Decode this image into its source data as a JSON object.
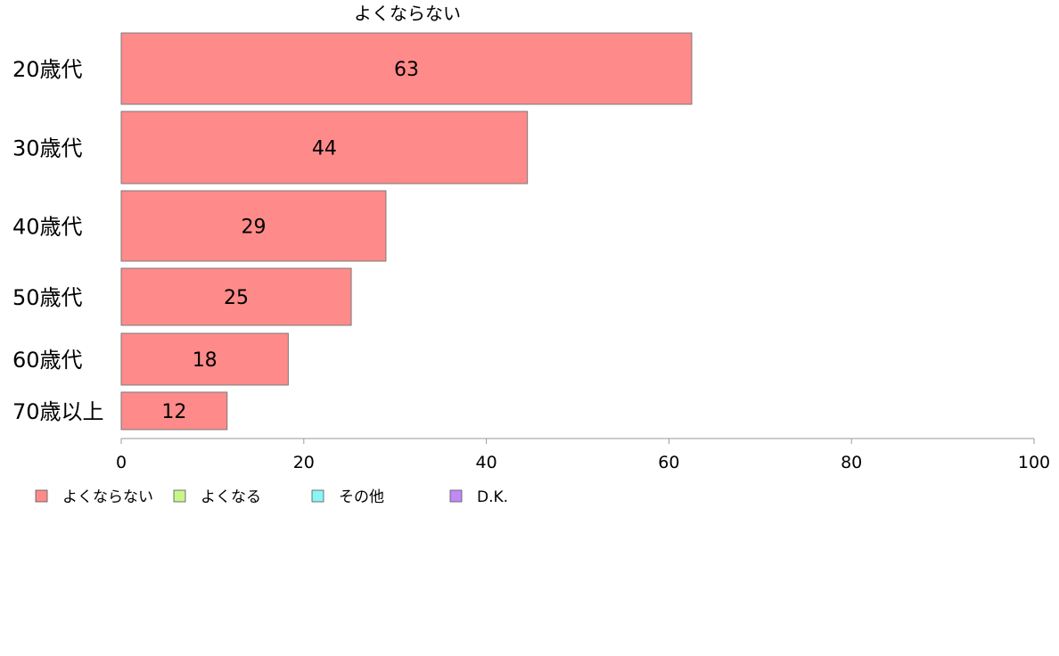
{
  "chart_data": {
    "type": "bar",
    "orientation": "horizontal",
    "title": "よくならない",
    "categories": [
      "20歳代",
      "30歳代",
      "40歳代",
      "50歳代",
      "60歳代",
      "70歳以上"
    ],
    "series": [
      {
        "name": "よくならない",
        "color": "#ff8a8a",
        "values": [
          63,
          44,
          29,
          25,
          18,
          12
        ],
        "display_values": [
          62.5,
          44.5,
          29,
          25.2,
          18.3,
          11.6
        ]
      }
    ],
    "xlim": [
      0,
      100
    ],
    "x_ticks": [
      0,
      20,
      40,
      60,
      80,
      100
    ],
    "grid": false,
    "legend": {
      "position": "bottom-left",
      "entries": [
        {
          "name": "よくならない",
          "color": "#ff8a8a"
        },
        {
          "name": "よくなる",
          "color": "#c8f58a"
        },
        {
          "name": "その他",
          "color": "#8af5f5"
        },
        {
          "name": "D.K.",
          "color": "#c08af5"
        }
      ]
    },
    "colors": {
      "bar_stroke": "#7a7a7a",
      "axis": "#9a9a9a"
    }
  }
}
